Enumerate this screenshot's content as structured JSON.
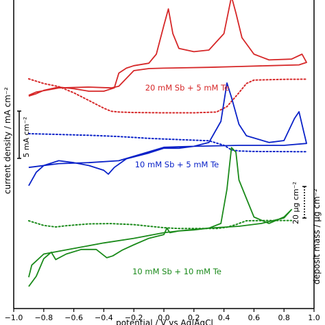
{
  "chart_data": {
    "type": "line",
    "xlabel": "potential / V vs Ag|AgCl",
    "ylabel_left": "current density / mA cm⁻²",
    "ylabel_right": "deposit mass / µg cm⁻²",
    "xlim": [
      -1.0,
      1.0
    ],
    "x_ticks": [
      "−1.0",
      "−0.8",
      "−0.6",
      "−0.4",
      "−0.2",
      "0.0",
      "0.2",
      "0.4",
      "0.6",
      "0.8",
      "1.0"
    ],
    "scale_bars": {
      "current": "5 mA cm⁻²",
      "mass": "20 µg cm⁻²"
    },
    "curves": [
      {
        "name": "20 mM Sb + 5 mM Te",
        "color": "#d62728",
        "current": [
          [
            -0.9,
            -3.6
          ],
          [
            -0.85,
            -3.3
          ],
          [
            -0.8,
            -2.9
          ],
          [
            -0.7,
            -2.5
          ],
          [
            -0.6,
            -2.7
          ],
          [
            -0.5,
            -3.0
          ],
          [
            -0.4,
            -3.0
          ],
          [
            -0.33,
            -2.6
          ],
          [
            -0.3,
            -0.8
          ],
          [
            -0.25,
            -0.2
          ],
          [
            -0.2,
            0.1
          ],
          [
            -0.1,
            0.4
          ],
          [
            -0.05,
            1.5
          ],
          [
            0.0,
            5.0
          ],
          [
            0.03,
            7.0
          ],
          [
            0.06,
            4.0
          ],
          [
            0.1,
            2.2
          ],
          [
            0.2,
            1.8
          ],
          [
            0.3,
            2.0
          ],
          [
            0.4,
            4.0
          ],
          [
            0.45,
            8.5
          ],
          [
            0.48,
            6.5
          ],
          [
            0.52,
            3.5
          ],
          [
            0.6,
            1.5
          ],
          [
            0.7,
            0.8
          ],
          [
            0.85,
            0.9
          ],
          [
            0.92,
            1.5
          ],
          [
            0.95,
            0.5
          ],
          [
            0.9,
            0.2
          ],
          [
            0.7,
            0.1
          ],
          [
            0.5,
            0.0
          ],
          [
            0.3,
            -0.1
          ],
          [
            0.0,
            -0.2
          ],
          [
            -0.1,
            -0.25
          ],
          [
            -0.2,
            -0.5
          ],
          [
            -0.3,
            -2.4
          ],
          [
            -0.35,
            -2.6
          ],
          [
            -0.5,
            -2.5
          ],
          [
            -0.7,
            -2.6
          ],
          [
            -0.85,
            -3.1
          ],
          [
            -0.9,
            -3.5
          ]
        ],
        "mass": [
          [
            -0.9,
            0
          ],
          [
            -0.8,
            -3
          ],
          [
            -0.7,
            -5
          ],
          [
            -0.6,
            -9
          ],
          [
            -0.5,
            -14
          ],
          [
            -0.4,
            -19
          ],
          [
            -0.35,
            -21
          ],
          [
            -0.3,
            -21.5
          ],
          [
            -0.2,
            -21.8
          ],
          [
            0.0,
            -22
          ],
          [
            0.2,
            -22
          ],
          [
            0.35,
            -21.5
          ],
          [
            0.42,
            -18
          ],
          [
            0.5,
            -9
          ],
          [
            0.55,
            -3
          ],
          [
            0.6,
            -0.8
          ],
          [
            0.8,
            -0.3
          ],
          [
            0.95,
            -0.2
          ]
        ]
      },
      {
        "name": "10 mM Sb + 5 mM Te",
        "color": "#0a22c8",
        "current": [
          [
            -0.9,
            -4.2
          ],
          [
            -0.85,
            -2.8
          ],
          [
            -0.8,
            -2.1
          ],
          [
            -0.7,
            -1.6
          ],
          [
            -0.6,
            -1.8
          ],
          [
            -0.5,
            -2.1
          ],
          [
            -0.4,
            -2.6
          ],
          [
            -0.37,
            -3.0
          ],
          [
            -0.33,
            -2.3
          ],
          [
            -0.25,
            -1.4
          ],
          [
            -0.1,
            -0.8
          ],
          [
            0.0,
            -0.3
          ],
          [
            0.1,
            -0.3
          ],
          [
            0.2,
            -0.1
          ],
          [
            0.3,
            0.3
          ],
          [
            0.38,
            2.5
          ],
          [
            0.42,
            6.5
          ],
          [
            0.45,
            5.0
          ],
          [
            0.5,
            2.2
          ],
          [
            0.55,
            1.0
          ],
          [
            0.7,
            0.3
          ],
          [
            0.8,
            0.5
          ],
          [
            0.87,
            2.8
          ],
          [
            0.9,
            3.5
          ],
          [
            0.93,
            1.5
          ],
          [
            0.95,
            0.2
          ],
          [
            0.8,
            0.0
          ],
          [
            0.5,
            0.0
          ],
          [
            0.2,
            -0.1
          ],
          [
            0.0,
            -0.2
          ],
          [
            -0.15,
            -0.9
          ],
          [
            -0.3,
            -1.6
          ],
          [
            -0.5,
            -1.8
          ],
          [
            -0.7,
            -1.9
          ],
          [
            -0.85,
            -2.2
          ],
          [
            -0.9,
            -2.3
          ]
        ],
        "mass": [
          [
            -0.9,
            0
          ],
          [
            -0.7,
            -0.5
          ],
          [
            -0.5,
            -1.0
          ],
          [
            -0.3,
            -1.8
          ],
          [
            -0.1,
            -3.0
          ],
          [
            0.1,
            -3.8
          ],
          [
            0.3,
            -4.6
          ],
          [
            0.4,
            -7.5
          ],
          [
            0.45,
            -10.5
          ],
          [
            0.5,
            -11.2
          ],
          [
            0.6,
            -11.5
          ],
          [
            0.8,
            -11.6
          ],
          [
            0.95,
            -11.7
          ]
        ]
      },
      {
        "name": "10 mM Sb + 10 mM Te",
        "color": "#1a8a1a",
        "current": [
          [
            -0.9,
            -6.5
          ],
          [
            -0.85,
            -5.4
          ],
          [
            -0.8,
            -3.5
          ],
          [
            -0.75,
            -2.8
          ],
          [
            -0.72,
            -3.6
          ],
          [
            -0.65,
            -3.0
          ],
          [
            -0.55,
            -2.5
          ],
          [
            -0.45,
            -2.5
          ],
          [
            -0.38,
            -3.4
          ],
          [
            -0.34,
            -3.2
          ],
          [
            -0.28,
            -2.6
          ],
          [
            -0.2,
            -2.0
          ],
          [
            -0.1,
            -1.3
          ],
          [
            0.0,
            -0.9
          ],
          [
            0.02,
            -0.2
          ],
          [
            0.04,
            -0.7
          ],
          [
            0.1,
            -0.5
          ],
          [
            0.2,
            -0.4
          ],
          [
            0.3,
            -0.2
          ],
          [
            0.38,
            0.3
          ],
          [
            0.42,
            4.0
          ],
          [
            0.45,
            8.5
          ],
          [
            0.48,
            8.0
          ],
          [
            0.5,
            5.0
          ],
          [
            0.55,
            3.0
          ],
          [
            0.6,
            1.0
          ],
          [
            0.7,
            0.3
          ],
          [
            0.8,
            1.0
          ],
          [
            0.85,
            1.8
          ],
          [
            0.8,
            0.9
          ],
          [
            0.65,
            0.3
          ],
          [
            0.5,
            0.0
          ],
          [
            0.3,
            -0.2
          ],
          [
            0.1,
            -0.5
          ],
          [
            0.0,
            -0.7
          ],
          [
            -0.2,
            -1.3
          ],
          [
            -0.4,
            -1.8
          ],
          [
            -0.6,
            -2.4
          ],
          [
            -0.8,
            -3.0
          ],
          [
            -0.88,
            -4.2
          ],
          [
            -0.9,
            -5.5
          ]
        ],
        "mass": [
          [
            -0.9,
            0
          ],
          [
            -0.8,
            -3
          ],
          [
            -0.72,
            -4
          ],
          [
            -0.65,
            -3.2
          ],
          [
            -0.5,
            -2
          ],
          [
            -0.35,
            -1.8
          ],
          [
            -0.2,
            -2.5
          ],
          [
            -0.1,
            -3.5
          ],
          [
            0.0,
            -4.5
          ],
          [
            0.1,
            -5
          ],
          [
            0.2,
            -5
          ],
          [
            0.35,
            -5
          ],
          [
            0.42,
            -4.2
          ],
          [
            0.48,
            -2.5
          ],
          [
            0.52,
            -1.0
          ],
          [
            0.55,
            0
          ],
          [
            0.7,
            0.2
          ],
          [
            0.85,
            0.2
          ]
        ]
      }
    ]
  }
}
